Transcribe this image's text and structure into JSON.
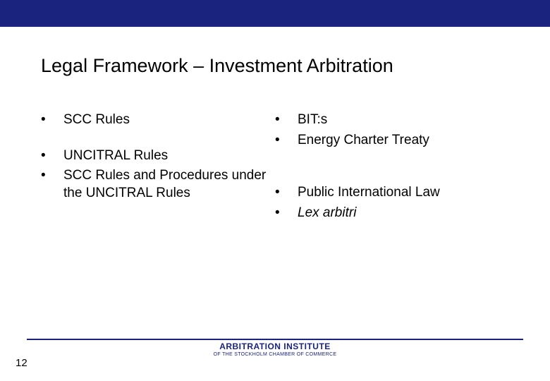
{
  "colors": {
    "topbar": "#1a237e",
    "footer_line": "#1a237e",
    "logo_main": "#1a237e",
    "logo_sub": "#1a237e",
    "text": "#000000",
    "background": "#ffffff"
  },
  "title": "Legal Framework – Investment Arbitration",
  "left_column": [
    {
      "text": "SCC Rules",
      "tight": false
    },
    {
      "text": "UNCITRAL Rules",
      "tight": true
    },
    {
      "text": "SCC Rules and Procedures under the UNCITRAL Rules",
      "tight": false
    }
  ],
  "right_column": [
    {
      "text": "BIT:s",
      "tight": true
    },
    {
      "text": "Energy Charter Treaty",
      "tight": false,
      "spacer_after": true
    },
    {
      "text": "Public International Law",
      "tight": true
    },
    {
      "text": "Lex arbitri",
      "tight": false,
      "italic": true
    }
  ],
  "footer": {
    "logo_main": "ARBITRATION INSTITUTE",
    "logo_sub": "OF THE STOCKHOLM CHAMBER OF COMMERCE"
  },
  "page_number": "12",
  "bullet_char": "•"
}
